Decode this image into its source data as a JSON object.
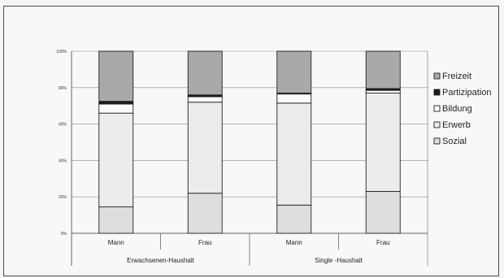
{
  "chart_data": {
    "type": "bar",
    "stacked": true,
    "percent": true,
    "ylim": [
      0,
      100
    ],
    "y_ticks": [
      "0%",
      "20%",
      "40%",
      "60%",
      "80%",
      "100%"
    ],
    "grid": true,
    "legend_position": "right",
    "categories": [
      "Mann",
      "Frau",
      "Mann",
      "Frau"
    ],
    "groups": [
      {
        "label": "Erwachsenen-Haushalt",
        "span": [
          0,
          1
        ]
      },
      {
        "label": "Single -Haushalt",
        "span": [
          2,
          3
        ]
      }
    ],
    "series": [
      {
        "name": "Sozial",
        "color": "#dedede",
        "values": [
          14.5,
          22,
          15.5,
          23
        ]
      },
      {
        "name": "Erwerb",
        "color": "#ececec",
        "values": [
          51.5,
          50,
          56,
          54
        ]
      },
      {
        "name": "Bildung",
        "color": "#fafafa",
        "values": [
          5,
          3,
          5,
          1.5
        ]
      },
      {
        "name": "Partizipation",
        "color": "#1a1a1a",
        "values": [
          1.5,
          1,
          0.5,
          1
        ]
      },
      {
        "name": "Freizeit",
        "color": "#a9a9a9",
        "values": [
          27.5,
          24,
          23,
          20.5
        ]
      }
    ],
    "legend_order": [
      "Freizeit",
      "Partizipation",
      "Bildung",
      "Erwerb",
      "Sozial"
    ]
  }
}
